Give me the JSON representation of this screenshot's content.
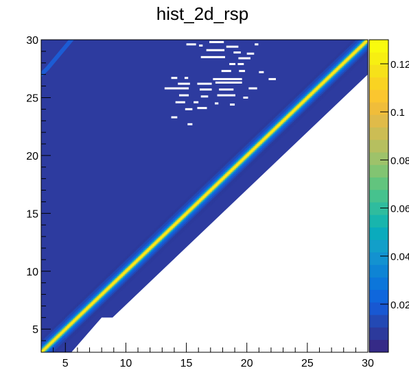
{
  "chart_data": {
    "type": "heatmap",
    "title": "hist_2d_rsp",
    "xlabel": "",
    "ylabel": "",
    "xlim": [
      3,
      30
    ],
    "ylim": [
      3,
      30
    ],
    "x_ticks": [
      5,
      10,
      15,
      20,
      25,
      30
    ],
    "y_ticks": [
      5,
      10,
      15,
      20,
      25,
      30
    ],
    "z_range": [
      0,
      0.13
    ],
    "palette_ticks": [
      0.02,
      0.04,
      0.06,
      0.08,
      0.1,
      0.12
    ],
    "palette_tick_labels": [
      "0.02",
      "0.04",
      "0.06",
      "0.08",
      "0.1",
      "0.12"
    ],
    "grid": false,
    "diagonal_band": {
      "peak_value": 0.13,
      "peak_line": "y = x",
      "lower_edge": [
        [
          3,
          3.0
        ],
        [
          5.5,
          3.0
        ],
        [
          8,
          6.0
        ],
        [
          8.9,
          6.0
        ],
        [
          30,
          27.0
        ]
      ],
      "upper_fill": "full"
    },
    "secondary_ridge": [
      [
        3,
        27.0
      ],
      [
        3.5,
        27.5
      ],
      [
        5.5,
        30.0
      ]
    ],
    "empty_bins": [
      [
        15.4,
        29.6,
        0.8
      ],
      [
        16.2,
        29.5,
        0.3
      ],
      [
        17.5,
        29.8,
        1.2
      ],
      [
        18.8,
        29.4,
        1.0
      ],
      [
        20.8,
        29.6,
        0.3
      ],
      [
        17.4,
        29.1,
        1.5
      ],
      [
        19.2,
        28.9,
        0.6
      ],
      [
        20.3,
        28.8,
        0.6
      ],
      [
        17.2,
        28.5,
        2.0
      ],
      [
        19.8,
        28.4,
        1.0
      ],
      [
        18.8,
        27.9,
        0.5
      ],
      [
        19.5,
        27.9,
        0.5
      ],
      [
        18.3,
        27.3,
        0.8
      ],
      [
        19.6,
        27.3,
        0.5
      ],
      [
        21.2,
        27.2,
        0.4
      ],
      [
        14.0,
        26.7,
        0.5
      ],
      [
        15.0,
        26.7,
        0.3
      ],
      [
        18.4,
        26.6,
        2.4
      ],
      [
        22.1,
        26.6,
        0.6
      ],
      [
        14.8,
        26.2,
        1.0
      ],
      [
        16.5,
        26.2,
        1.2
      ],
      [
        18.5,
        26.3,
        2.2
      ],
      [
        14.2,
        25.8,
        2.0
      ],
      [
        16.6,
        25.7,
        1.0
      ],
      [
        18.3,
        25.7,
        1.2
      ],
      [
        20.5,
        25.8,
        0.7
      ],
      [
        14.8,
        25.2,
        0.8
      ],
      [
        16.5,
        25.1,
        0.6
      ],
      [
        18.3,
        25.2,
        1.5
      ],
      [
        19.9,
        25.0,
        0.4
      ],
      [
        14.5,
        24.6,
        0.8
      ],
      [
        15.8,
        24.6,
        0.4
      ],
      [
        17.5,
        24.5,
        0.3
      ],
      [
        18.8,
        24.4,
        0.4
      ],
      [
        15.2,
        24.0,
        0.6
      ],
      [
        16.3,
        24.1,
        0.8
      ],
      [
        14.0,
        23.3,
        0.5
      ],
      [
        15.3,
        22.7,
        0.4
      ]
    ],
    "colors": {
      "palette": [
        "#352a87",
        "#2c3a9c",
        "#2349b4",
        "#1858d2",
        "#0f67dc",
        "#0c76da",
        "#0e84d4",
        "#1392d0",
        "#129fc9",
        "#0aabbd",
        "#18b5ad",
        "#2fbc9e",
        "#46c28e",
        "#62c47e",
        "#82c472",
        "#9ec26a",
        "#b6bf5f",
        "#ccbd54",
        "#e0bb49",
        "#f0bd3a",
        "#fbc62f",
        "#f9d322",
        "#f6e11a",
        "#f7ef12",
        "#f9fb0e"
      ],
      "background": "#2d3b9f",
      "empty": "#ffffff"
    }
  }
}
